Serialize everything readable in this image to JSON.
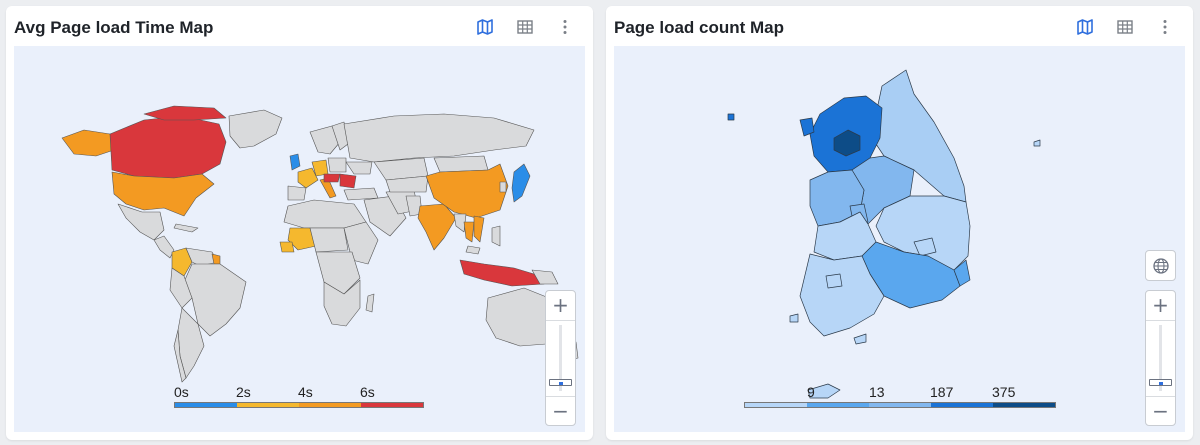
{
  "left_panel": {
    "title": "Avg Page load Time Map",
    "legend": {
      "labels": [
        "0s",
        "2s",
        "4s",
        "6s"
      ],
      "colors": [
        "#2a8de8",
        "#f5b82e",
        "#f39a22",
        "#d9373c"
      ]
    }
  },
  "right_panel": {
    "title": "Page load count Map",
    "legend": {
      "labels": [
        "9",
        "13",
        "187",
        "375"
      ],
      "colors": [
        "#b7d6f7",
        "#5aa7ee",
        "#82b7ee",
        "#1b73d6",
        "#0d4c87"
      ]
    }
  },
  "toolbar": {
    "icons": [
      "map-view-icon",
      "table-view-icon",
      "more-options-icon"
    ]
  },
  "zoom": {
    "in_label": "+",
    "out_label": "−",
    "level": 0.1
  },
  "colors": {
    "active_icon": "#2f6fde",
    "map_background": "#eaf0fb",
    "land_default": "#d9dadc",
    "border": "#555555"
  }
}
